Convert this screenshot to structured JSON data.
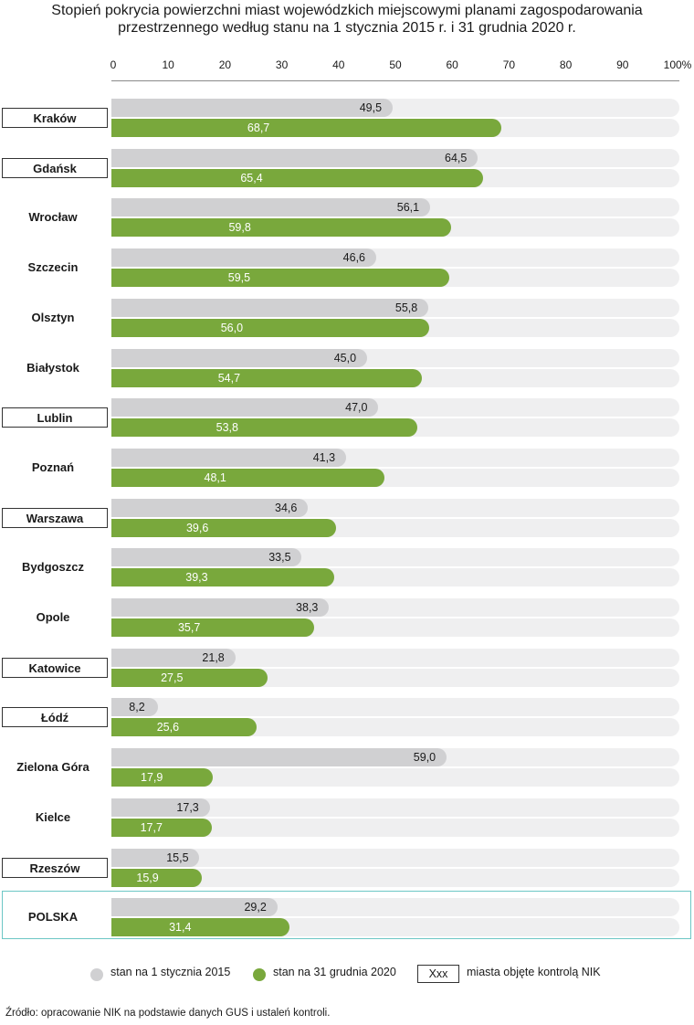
{
  "chart_data": {
    "type": "bar",
    "orientation": "horizontal",
    "title": "Stopień pokrycia powierzchni miast wojewódzkich miejscowymi planami zagospodarowania przestrzennego według stanu na 1 stycznia 2015 r. i 31 grudnia 2020 r.",
    "xlim": [
      0,
      100
    ],
    "x_ticks": [
      "0",
      "10",
      "20",
      "30",
      "40",
      "50",
      "60",
      "70",
      "80",
      "90",
      "100%"
    ],
    "categories": [
      "Kraków",
      "Gdańsk",
      "Wrocław",
      "Szczecin",
      "Olsztyn",
      "Białystok",
      "Lublin",
      "Poznań",
      "Warszawa",
      "Bydgoszcz",
      "Opole",
      "Katowice",
      "Łódź",
      "Zielona Góra",
      "Kielce",
      "Rzeszów",
      "POLSKA"
    ],
    "boxed": [
      true,
      true,
      false,
      false,
      false,
      false,
      true,
      false,
      true,
      false,
      false,
      true,
      true,
      false,
      false,
      true,
      false
    ],
    "series": [
      {
        "name": "stan na 1 stycznia 2015",
        "color": "#d0d0d2",
        "values": [
          49.5,
          64.5,
          56.1,
          46.6,
          55.8,
          45.0,
          47.0,
          41.3,
          34.6,
          33.5,
          38.3,
          21.8,
          8.2,
          59.0,
          17.3,
          15.5,
          29.2
        ],
        "labels": [
          "49,5",
          "64,5",
          "56,1",
          "46,6",
          "55,8",
          "45,0",
          "47,0",
          "41,3",
          "34,6",
          "33,5",
          "38,3",
          "21,8",
          "8,2",
          "59,0",
          "17,3",
          "15,5",
          "29,2"
        ]
      },
      {
        "name": "stan na 31 grudnia 2020",
        "color": "#79a83c",
        "values": [
          68.7,
          65.4,
          59.8,
          59.5,
          56.0,
          54.7,
          53.8,
          48.1,
          39.6,
          39.3,
          35.7,
          27.5,
          25.6,
          17.9,
          17.7,
          15.9,
          31.4
        ],
        "labels": [
          "68,7",
          "65,4",
          "59,8",
          "59,5",
          "56,0",
          "54,7",
          "53,8",
          "48,1",
          "39,6",
          "39,3",
          "35,7",
          "27,5",
          "25,6",
          "17,9",
          "17,7",
          "15,9",
          "31,4"
        ]
      }
    ],
    "grid": false,
    "legend_position": "bottom"
  },
  "legend": {
    "item_2015": "stan na 1 stycznia 2015",
    "item_2020": "stan na 31 grudnia 2020",
    "box_sample": "Xxx",
    "box_meaning": "miasta objęte kontrolą NIK"
  },
  "source": "Źródło: opracowanie NIK na podstawie danych GUS i ustaleń kontroli."
}
